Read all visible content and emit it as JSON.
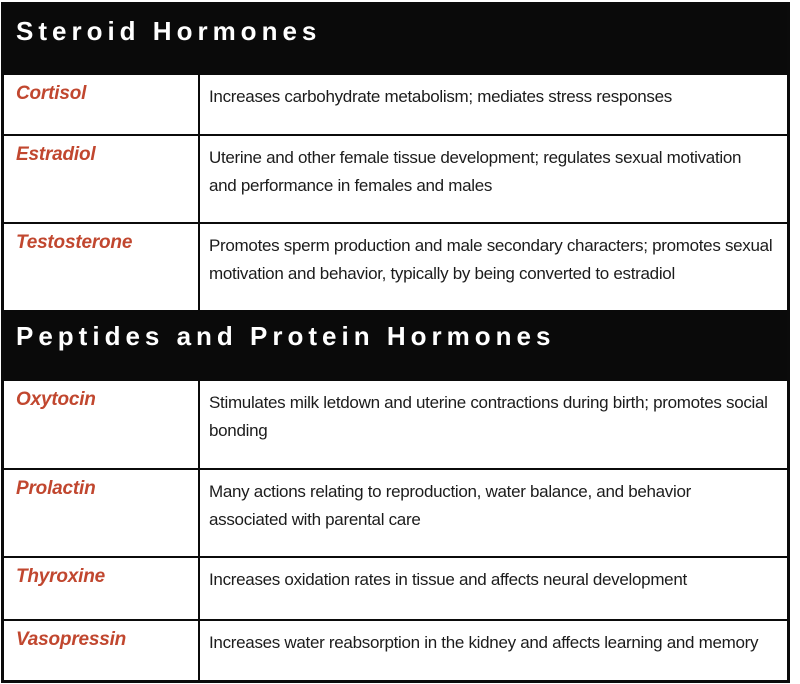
{
  "table": {
    "title_context": "hormone reference table",
    "colors": {
      "header_bg": "#0a0a0a",
      "header_text": "#ffffff",
      "hormone_name": "#c1472f",
      "body_text": "#1c1c1c",
      "border": "#0b0b0b"
    },
    "sections": [
      {
        "header": "Steroid Hormones",
        "rows": [
          {
            "name": "Cortisol",
            "description": "Increases carbohydrate metabolism; mediates stress responses"
          },
          {
            "name": "Estradiol",
            "description": "Uterine and other female tissue development; regulates sexual motivation and performance in females and males"
          },
          {
            "name": "Testosterone",
            "description": "Promotes sperm production and male secondary characters; promotes sexual motivation and behavior, typically by being converted to estradiol"
          }
        ]
      },
      {
        "header": "Peptides and Protein Hormones",
        "rows": [
          {
            "name": "Oxytocin",
            "description": "Stimulates milk letdown and uterine contractions during birth; promotes social bonding"
          },
          {
            "name": "Prolactin",
            "description": "Many actions relating to reproduction, water balance, and behavior associated with parental care"
          },
          {
            "name": "Thyroxine",
            "description": "Increases oxidation rates in tissue and affects neural development"
          },
          {
            "name": "Vasopressin",
            "description": "Increases water reabsorption in the kidney and affects learning and memory"
          }
        ]
      }
    ]
  }
}
